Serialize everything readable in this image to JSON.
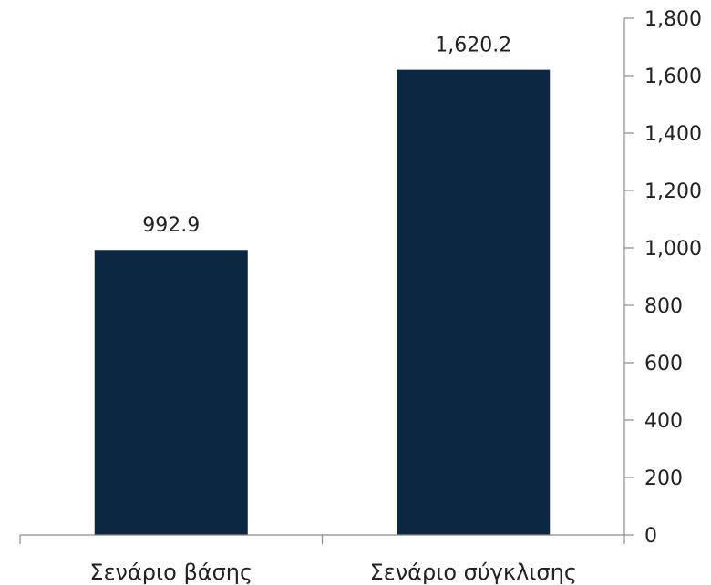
{
  "chart_data": {
    "type": "bar",
    "categories": [
      "Σενάριο βάσης",
      "Σενάριο σύγκλισης"
    ],
    "values": [
      992.9,
      1620.2
    ],
    "data_labels": [
      "992.9",
      "1,620.2"
    ],
    "ylim": [
      0,
      1800
    ],
    "yticks": [
      0,
      200,
      400,
      600,
      800,
      1000,
      1200,
      1400,
      1600,
      1800
    ],
    "ytick_labels": [
      "0",
      "200",
      "400",
      "600",
      "800",
      "1,000",
      "1,200",
      "1,400",
      "1,600",
      "1,800"
    ],
    "y_axis_side": "right",
    "grid": false,
    "legend": "none",
    "bar_color": "#0b2742",
    "axis_color": "#8a8a8a",
    "text_color": "#222222"
  }
}
